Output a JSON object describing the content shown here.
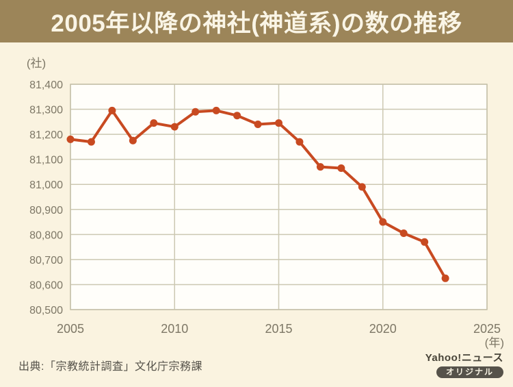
{
  "header": {
    "title": "2005年以降の神社(神道系)の数の推移"
  },
  "chart_data": {
    "type": "line",
    "title": "2005年以降の神社(神道系)の数の推移",
    "ylabel": "(社)",
    "xlabel": "(年)",
    "x": [
      2005,
      2006,
      2007,
      2008,
      2009,
      2010,
      2011,
      2012,
      2013,
      2014,
      2015,
      2016,
      2017,
      2018,
      2019,
      2020,
      2021,
      2022,
      2023
    ],
    "values": [
      81180,
      81170,
      81295,
      81175,
      81245,
      81230,
      81290,
      81295,
      81275,
      81240,
      81245,
      81170,
      81070,
      81065,
      80990,
      80850,
      80805,
      80770,
      80625
    ],
    "xlim": [
      2005,
      2025
    ],
    "ylim": [
      80500,
      81400
    ],
    "xticks": [
      2005,
      2010,
      2015,
      2020,
      2025
    ],
    "ytick_step": 100,
    "grid": true,
    "legend": false,
    "marker": "circle"
  },
  "footer": {
    "source": "出典:「宗教統計調査」文化庁宗務課",
    "brand": "Yahoo!ニュース",
    "badge": "オリジナル"
  },
  "colors": {
    "title_bar_bg": "#9c8559",
    "title_text": "#faf5e6",
    "page_bg": "#faf3e0",
    "plot_bg": "#fffefa",
    "grid_line": "#ccc8b2",
    "plot_frame": "#c6c2aa",
    "axis_text": "#7d7766",
    "data_line": "#c84a21",
    "source_text": "#55524a",
    "brand_text": "#474338",
    "badge_bg": "#56524a",
    "badge_text": "#f7f2e2"
  }
}
